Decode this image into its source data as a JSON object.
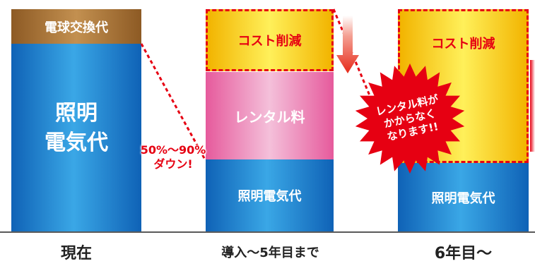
{
  "columns": [
    {
      "x_label": "現在",
      "top_label": "電球交換代",
      "main_label_lines": [
        "照明",
        "電気代"
      ]
    },
    {
      "x_label": "導入〜5年目まで",
      "cost_label": "コスト削減",
      "rental_label": "レンタル料",
      "bottom_label": "照明電気代"
    },
    {
      "x_label": "6年目〜",
      "cost_label": "コスト削減",
      "bottom_label": "照明電気代"
    }
  ],
  "reduction": {
    "range": "50%〜90%",
    "caption": "ダウン!"
  },
  "burst": {
    "lines": [
      "レンタル料が",
      "かからなく",
      "なります!!"
    ]
  },
  "colors": {
    "accent_red": "#e60012",
    "blue": "#1a78cc",
    "pink": "#ee8dbd",
    "gold": "#f8d21e",
    "brown": "#a8733a"
  }
}
